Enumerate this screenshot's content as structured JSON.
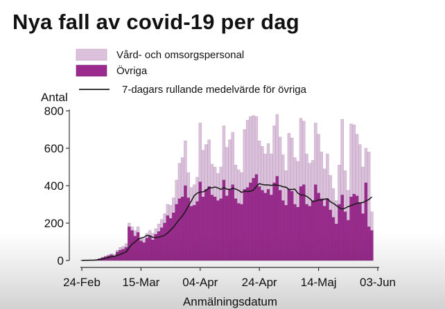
{
  "title": "Nya fall av covid-19 per dag",
  "colors": {
    "staff": "#dcc1dc",
    "other": "#9b2a8e",
    "line": "#1a1a1a",
    "axis": "#333333"
  },
  "chart_data": {
    "type": "bar",
    "stacked": true,
    "ylabel": "Antal",
    "xlabel": "Anmälningsdatum",
    "ylim": [
      0,
      800
    ],
    "yticks": [
      0,
      200,
      400,
      600,
      800
    ],
    "x_start": "24-Feb",
    "x_end": "04-Jun",
    "xticks": [
      {
        "label": "24-Feb",
        "day": 0
      },
      {
        "label": "15-Mar",
        "day": 20
      },
      {
        "label": "04-Apr",
        "day": 40
      },
      {
        "label": "24-Apr",
        "day": 60
      },
      {
        "label": "14-Maj",
        "day": 80
      },
      {
        "label": "03-Jun",
        "day": 100
      }
    ],
    "legend": {
      "placement": "top-left",
      "entries": [
        {
          "key": "staff",
          "label": "Vård- och omsorgspersonal"
        },
        {
          "key": "other",
          "label": "Övriga"
        },
        {
          "key": "line",
          "label": "7-dagars rullande medelvärde för övriga"
        }
      ]
    },
    "series": [
      {
        "name": "Övriga",
        "values": [
          1,
          2,
          2,
          3,
          3,
          5,
          10,
          15,
          20,
          25,
          30,
          25,
          45,
          55,
          60,
          70,
          180,
          160,
          130,
          150,
          105,
          95,
          120,
          130,
          110,
          140,
          155,
          175,
          200,
          240,
          225,
          255,
          300,
          330,
          340,
          400,
          335,
          290,
          295,
          315,
          420,
          340,
          380,
          395,
          350,
          340,
          320,
          330,
          430,
          345,
          380,
          405,
          330,
          305,
          300,
          380,
          390,
          415,
          440,
          460,
          395,
          375,
          360,
          380,
          350,
          415,
          450,
          375,
          320,
          295,
          380,
          370,
          300,
          285,
          395,
          405,
          300,
          290,
          320,
          405,
          360,
          330,
          290,
          330,
          270,
          230,
          195,
          300,
          350,
          260,
          215,
          340,
          355,
          345,
          310,
          250,
          415,
          180,
          160
        ]
      },
      {
        "name": "Vård- och omsorgspersonal",
        "values": [
          0,
          0,
          0,
          0,
          0,
          0,
          0,
          2,
          3,
          5,
          6,
          8,
          10,
          15,
          15,
          20,
          20,
          20,
          30,
          30,
          15,
          20,
          25,
          30,
          35,
          30,
          40,
          45,
          50,
          60,
          70,
          80,
          130,
          190,
          210,
          240,
          135,
          100,
          110,
          130,
          315,
          250,
          240,
          250,
          165,
          160,
          145,
          170,
          290,
          260,
          265,
          280,
          180,
          180,
          170,
          320,
          360,
          355,
          335,
          310,
          245,
          235,
          210,
          245,
          220,
          305,
          330,
          285,
          245,
          185,
          300,
          285,
          250,
          245,
          365,
          340,
          270,
          230,
          215,
          330,
          315,
          250,
          200,
          240,
          185,
          155,
          125,
          210,
          405,
          220,
          160,
          390,
          370,
          330,
          310,
          250,
          185,
          400,
          100
        ]
      }
    ],
    "rolling_average": {
      "name": "7-dagars rullande medelvärde för övriga",
      "values": [
        0,
        1,
        1,
        2,
        2,
        3,
        5,
        8,
        12,
        16,
        20,
        23,
        27,
        33,
        40,
        46,
        69,
        87,
        100,
        114,
        120,
        124,
        135,
        132,
        124,
        122,
        126,
        129,
        135,
        147,
        163,
        179,
        200,
        220,
        239,
        262,
        291,
        318,
        347,
        360,
        366,
        367,
        375,
        389,
        388,
        393,
        388,
        380,
        390,
        381,
        380,
        386,
        382,
        375,
        364,
        371,
        369,
        370,
        377,
        396,
        411,
        406,
        404,
        404,
        401,
        404,
        403,
        400,
        394,
        392,
        380,
        380,
        381,
        360,
        350,
        350,
        343,
        331,
        315,
        318,
        324,
        323,
        328,
        330,
        314,
        305,
        294,
        282,
        275,
        280,
        288,
        294,
        300,
        306,
        308,
        310,
        318,
        326,
        340
      ]
    }
  }
}
